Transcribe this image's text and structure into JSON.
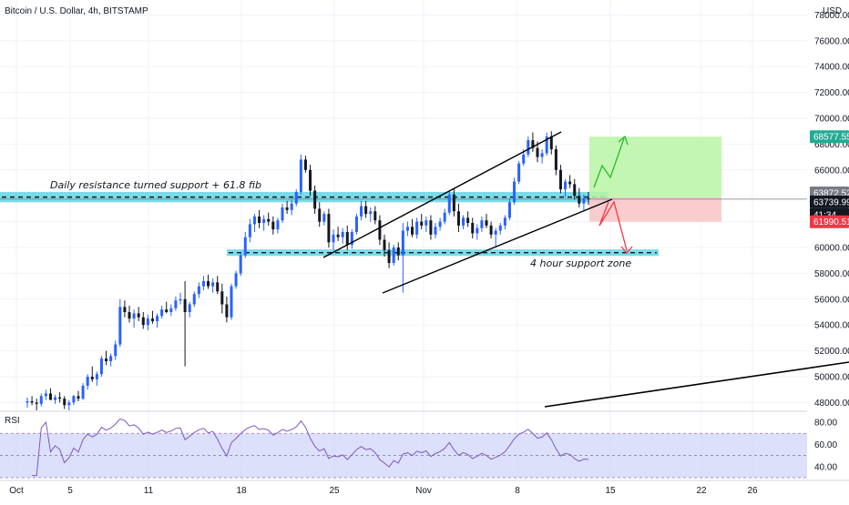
{
  "header": {
    "title": "Bitcoin / U.S. Dollar, 4h, BITSTAMP",
    "currency": "USD"
  },
  "chart_data": {
    "type": "candlestick",
    "ylim": [
      47000,
      79000
    ],
    "y_ticks": [
      {
        "value": 78000,
        "label": "78000.00"
      },
      {
        "value": 76000,
        "label": "76000.00"
      },
      {
        "value": 74000,
        "label": "74000.00"
      },
      {
        "value": 72000,
        "label": "72000.00"
      },
      {
        "value": 70000,
        "label": "70000.00"
      },
      {
        "value": 68000,
        "label": "68000.00"
      },
      {
        "value": 66000,
        "label": "66000.00"
      },
      {
        "value": 62000,
        "label": "62000.00"
      },
      {
        "value": 60000,
        "label": "60000.00"
      },
      {
        "value": 58000,
        "label": "58000.00"
      },
      {
        "value": 56000,
        "label": "56000.00"
      },
      {
        "value": 54000,
        "label": "54000.00"
      },
      {
        "value": 52000,
        "label": "52000.00"
      },
      {
        "value": 50000,
        "label": "50000.00"
      },
      {
        "value": 48000,
        "label": "48000.00"
      }
    ],
    "x_ticks": [
      "Oct",
      "5",
      "11",
      "18",
      "25",
      "Nov",
      "8",
      "15",
      "22",
      "26"
    ],
    "price_labels": [
      {
        "value": 68577.55,
        "label": "68577.55",
        "color": "#22ab94"
      },
      {
        "value": 63872.52,
        "label": "63872.52",
        "color": "#787b86"
      },
      {
        "value": 63739.99,
        "label": "63739.99",
        "color": "#131722"
      },
      {
        "value": 61990.51,
        "label": "61990.51",
        "color": "#f23645"
      }
    ],
    "countdown": "41:34",
    "key_levels": [
      {
        "name": "Daily resistance turned support + 61.8 fib",
        "low": 63500,
        "high": 64300
      },
      {
        "name": "4 hour support zone",
        "low": 59350,
        "high": 59850
      }
    ],
    "trade_setup": {
      "entry": 63872.52,
      "target": 68577.55,
      "stop": 61990.51
    },
    "rsi": {
      "label": "RSI",
      "ylim": [
        30,
        85
      ],
      "upper": 70,
      "mid": 50,
      "lower": 30,
      "ticks": [
        {
          "value": 80,
          "label": "80.00"
        },
        {
          "value": 60,
          "label": "60.00"
        },
        {
          "value": 40,
          "label": "40.00"
        }
      ]
    },
    "candles": [
      [
        48000,
        48400,
        47600,
        48100
      ],
      [
        48100,
        48500,
        47800,
        48000
      ],
      [
        48000,
        48300,
        47400,
        47900
      ],
      [
        47900,
        48700,
        47700,
        48500
      ],
      [
        48500,
        49000,
        48200,
        48700
      ],
      [
        48700,
        49100,
        48500,
        48200
      ],
      [
        48200,
        48600,
        47900,
        48400
      ],
      [
        48400,
        48800,
        48000,
        48300
      ],
      [
        48300,
        48500,
        47500,
        47800
      ],
      [
        47800,
        48200,
        47400,
        48000
      ],
      [
        48000,
        48600,
        47800,
        48500
      ],
      [
        48500,
        48900,
        48100,
        48300
      ],
      [
        48300,
        49500,
        48200,
        49300
      ],
      [
        49300,
        50200,
        49000,
        50000
      ],
      [
        50000,
        50800,
        49600,
        49800
      ],
      [
        49800,
        50400,
        49300,
        50200
      ],
      [
        50200,
        51600,
        50000,
        51400
      ],
      [
        51400,
        52000,
        50900,
        51200
      ],
      [
        51200,
        51800,
        50800,
        51600
      ],
      [
        51600,
        52800,
        51300,
        52500
      ],
      [
        52500,
        56000,
        52300,
        55400
      ],
      [
        55400,
        55900,
        54600,
        55000
      ],
      [
        55000,
        55500,
        54200,
        54500
      ],
      [
        54500,
        55200,
        53800,
        54900
      ],
      [
        54900,
        55400,
        54300,
        54600
      ],
      [
        54600,
        55000,
        53700,
        54000
      ],
      [
        54000,
        54800,
        53600,
        54500
      ],
      [
        54500,
        55100,
        54100,
        54300
      ],
      [
        54300,
        54900,
        53800,
        54700
      ],
      [
        54700,
        55500,
        54500,
        55200
      ],
      [
        55200,
        55800,
        54900,
        55000
      ],
      [
        55000,
        55600,
        54700,
        55300
      ],
      [
        55300,
        56200,
        55100,
        55900
      ],
      [
        55900,
        56500,
        55600,
        56000
      ],
      [
        56000,
        57400,
        50800,
        55000
      ],
      [
        55000,
        55800,
        54600,
        55600
      ],
      [
        55600,
        56600,
        55400,
        56400
      ],
      [
        56400,
        57300,
        56100,
        57000
      ],
      [
        57000,
        57800,
        56700,
        57400
      ],
      [
        57400,
        57900,
        56800,
        57000
      ],
      [
        57000,
        57600,
        56500,
        57300
      ],
      [
        57300,
        57800,
        56400,
        56600
      ],
      [
        56600,
        57200,
        54900,
        55600
      ],
      [
        55600,
        56200,
        54200,
        54600
      ],
      [
        54600,
        57200,
        54400,
        57000
      ],
      [
        57000,
        58200,
        56800,
        58000
      ],
      [
        58000,
        59600,
        57800,
        59400
      ],
      [
        59400,
        61200,
        59200,
        60800
      ],
      [
        60800,
        62200,
        60400,
        61800
      ],
      [
        61800,
        62600,
        61200,
        62400
      ],
      [
        62400,
        62900,
        61500,
        61900
      ],
      [
        61900,
        62500,
        61300,
        62200
      ],
      [
        62200,
        62700,
        61700,
        62000
      ],
      [
        62000,
        62400,
        61000,
        61400
      ],
      [
        61400,
        62300,
        61100,
        62100
      ],
      [
        62100,
        63400,
        61900,
        63100
      ],
      [
        63100,
        63600,
        62600,
        62900
      ],
      [
        62900,
        63700,
        62500,
        63400
      ],
      [
        63400,
        64500,
        63200,
        64300
      ],
      [
        64300,
        67200,
        64100,
        66800
      ],
      [
        66800,
        67100,
        65800,
        66000
      ],
      [
        66000,
        66400,
        64000,
        64400
      ],
      [
        64400,
        64800,
        62600,
        63000
      ],
      [
        63000,
        63500,
        61600,
        62000
      ],
      [
        62000,
        62800,
        61700,
        62600
      ],
      [
        62600,
        63000,
        60000,
        60400
      ],
      [
        60400,
        61400,
        59800,
        61000
      ],
      [
        61000,
        61600,
        60500,
        60800
      ],
      [
        60800,
        61500,
        60300,
        61200
      ],
      [
        61200,
        61700,
        59800,
        60200
      ],
      [
        60200,
        61400,
        59900,
        61200
      ],
      [
        61200,
        62600,
        61000,
        62400
      ],
      [
        62400,
        63600,
        62100,
        63200
      ],
      [
        63200,
        63600,
        62300,
        62600
      ],
      [
        62600,
        63100,
        62000,
        62800
      ],
      [
        62800,
        63200,
        61800,
        62100
      ],
      [
        62100,
        62500,
        60200,
        60600
      ],
      [
        60600,
        61000,
        59300,
        59800
      ],
      [
        59800,
        60400,
        58400,
        58800
      ],
      [
        58800,
        60200,
        58600,
        60000
      ],
      [
        60000,
        60400,
        59000,
        59400
      ],
      [
        59400,
        61900,
        56500,
        61300
      ],
      [
        61300,
        62000,
        60900,
        61600
      ],
      [
        61600,
        62200,
        60800,
        61000
      ],
      [
        61000,
        62300,
        60700,
        62000
      ],
      [
        62000,
        62600,
        61400,
        61700
      ],
      [
        61700,
        62400,
        61200,
        62100
      ],
      [
        62100,
        62500,
        60600,
        61000
      ],
      [
        61000,
        61900,
        60700,
        61600
      ],
      [
        61600,
        62300,
        61300,
        62000
      ],
      [
        62000,
        63000,
        61800,
        62700
      ],
      [
        62700,
        64400,
        62500,
        64100
      ],
      [
        64100,
        64600,
        62400,
        62800
      ],
      [
        62800,
        63400,
        61200,
        61700
      ],
      [
        61700,
        62500,
        61400,
        62300
      ],
      [
        62300,
        62800,
        61600,
        61900
      ],
      [
        61900,
        62300,
        60700,
        61100
      ],
      [
        61100,
        61800,
        60600,
        61500
      ],
      [
        61500,
        62400,
        61200,
        62100
      ],
      [
        62100,
        62600,
        61500,
        61700
      ],
      [
        61700,
        62000,
        60700,
        61000
      ],
      [
        61000,
        61500,
        60100,
        61300
      ],
      [
        61300,
        61900,
        61000,
        61700
      ],
      [
        61700,
        62500,
        61400,
        62300
      ],
      [
        62300,
        63800,
        62100,
        63500
      ],
      [
        63500,
        65400,
        63300,
        65100
      ],
      [
        65100,
        66700,
        64900,
        66500
      ],
      [
        66500,
        67600,
        66300,
        67200
      ],
      [
        67200,
        68600,
        67000,
        68300
      ],
      [
        68300,
        68900,
        67400,
        67700
      ],
      [
        67700,
        68200,
        66600,
        67000
      ],
      [
        67000,
        67600,
        66500,
        67300
      ],
      [
        67300,
        68900,
        67100,
        68600
      ],
      [
        68600,
        69000,
        67200,
        67600
      ],
      [
        67600,
        67900,
        65600,
        66000
      ],
      [
        66000,
        66400,
        64200,
        64500
      ],
      [
        64500,
        65300,
        63900,
        65100
      ],
      [
        65100,
        65600,
        64600,
        64900
      ],
      [
        64900,
        65300,
        63700,
        64000
      ],
      [
        64000,
        64600,
        63100,
        63400
      ],
      [
        63400,
        64100,
        62800,
        63800
      ],
      [
        63800,
        64300,
        63300,
        63740
      ]
    ]
  }
}
